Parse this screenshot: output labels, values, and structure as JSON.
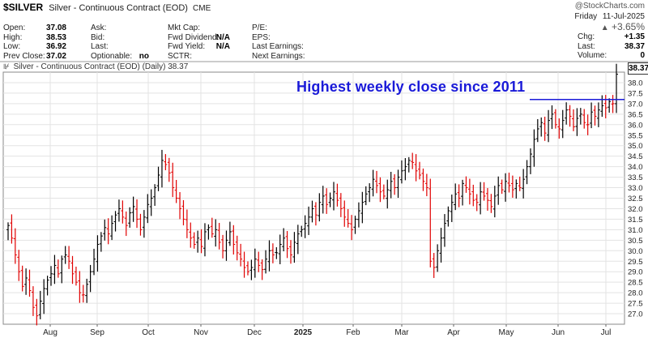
{
  "header": {
    "symbol": "$SILVER",
    "description": "Silver - Continuous Contract (EOD)",
    "exchange": "CME",
    "logo": "@StockCharts.com",
    "day": "Friday",
    "date": "11-Jul-2025",
    "change_pct": "+3.65%",
    "arrow_icon": "up-triangle-icon",
    "col1": [
      {
        "label": "Open:",
        "value": "37.08"
      },
      {
        "label": "High:",
        "value": "38.53"
      },
      {
        "label": "Low:",
        "value": "36.92"
      },
      {
        "label": "Prev Close:",
        "value": "37.02"
      }
    ],
    "col2": [
      {
        "label": "Ask:",
        "value": ""
      },
      {
        "label": "Bid:",
        "value": ""
      },
      {
        "label": "Last:",
        "value": ""
      },
      {
        "label": "Optionable:",
        "value": "no"
      }
    ],
    "col3": [
      {
        "label": "Mkt Cap:",
        "value": ""
      },
      {
        "label": "Fwd Dividend:",
        "value": "N/A"
      },
      {
        "label": "Fwd Yield:",
        "value": "N/A"
      },
      {
        "label": "SCTR:",
        "value": ""
      }
    ],
    "col4": [
      {
        "label": "P/E:",
        "value": ""
      },
      {
        "label": "EPS:",
        "value": ""
      },
      {
        "label": "Last Earnings:",
        "value": ""
      },
      {
        "label": "Next Earnings:",
        "value": ""
      }
    ],
    "col5": [
      {
        "label": "Chg:",
        "value": "+1.35"
      },
      {
        "label": "Last:",
        "value": "38.37"
      },
      {
        "label": "Volume:",
        "value": "0"
      }
    ]
  },
  "plot": {
    "subtitle": "Silver - Continuous Contract (EOD) (Daily) 38.37",
    "annotation": "Highest weekly close since 2011",
    "last_price_label": "38.37"
  },
  "colors": {
    "up": "#000000",
    "down": "#e00000",
    "annotation": "#1a1ad8",
    "grid": "#e3e3e3"
  },
  "chart_data": {
    "type": "ohlc",
    "xlabel": "",
    "ylabel": "",
    "ylim": [
      26.5,
      38.5
    ],
    "y_ticks": [
      27.0,
      27.5,
      28.0,
      28.5,
      29.0,
      29.5,
      30.0,
      30.5,
      31.0,
      31.5,
      32.0,
      32.5,
      33.0,
      33.5,
      34.0,
      34.5,
      35.0,
      35.5,
      36.0,
      36.5,
      37.0,
      37.5,
      38.0
    ],
    "x_tick_labels": [
      "Aug",
      "Sep",
      "Oct",
      "Nov",
      "Dec",
      "2025",
      "Feb",
      "Mar",
      "Apr",
      "May",
      "Jun",
      "Jul"
    ],
    "grid": true,
    "approx_closes": [
      31.2,
      30.6,
      29.8,
      29.0,
      28.3,
      28.7,
      28.1,
      27.3,
      26.9,
      27.6,
      28.2,
      28.6,
      28.9,
      29.3,
      28.9,
      29.6,
      29.8,
      29.5,
      28.9,
      28.5,
      28.0,
      27.9,
      28.4,
      29.0,
      29.6,
      30.3,
      30.7,
      31.1,
      30.8,
      31.3,
      31.7,
      32.0,
      31.6,
      31.2,
      31.8,
      32.1,
      31.5,
      31.0,
      31.6,
      32.2,
      32.5,
      33.0,
      33.6,
      34.3,
      34.1,
      33.7,
      33.0,
      32.5,
      32.0,
      31.5,
      31.0,
      30.6,
      30.3,
      30.6,
      30.2,
      30.9,
      31.1,
      30.8,
      31.0,
      30.4,
      30.0,
      30.5,
      30.9,
      30.3,
      29.9,
      29.6,
      29.2,
      29.0,
      29.2,
      29.6,
      29.3,
      29.1,
      29.6,
      30.0,
      29.8,
      29.9,
      30.3,
      30.6,
      30.1,
      29.8,
      30.4,
      30.8,
      31.0,
      31.3,
      31.6,
      32.0,
      31.7,
      32.3,
      32.6,
      32.2,
      32.5,
      32.8,
      32.4,
      32.0,
      31.6,
      31.3,
      31.0,
      31.5,
      31.9,
      32.3,
      32.7,
      33.0,
      33.4,
      33.1,
      32.8,
      32.6,
      32.9,
      33.3,
      33.0,
      33.5,
      33.8,
      34.0,
      34.3,
      34.2,
      33.8,
      33.6,
      33.3,
      33.0,
      29.5,
      29.2,
      30.0,
      30.6,
      31.3,
      31.9,
      32.3,
      32.7,
      32.5,
      33.2,
      33.0,
      32.7,
      32.4,
      32.3,
      32.8,
      32.6,
      32.4,
      32.1,
      32.6,
      33.1,
      32.9,
      33.3,
      33.1,
      32.9,
      33.2,
      33.0,
      33.4,
      34.0,
      34.6,
      35.3,
      35.8,
      36.1,
      35.6,
      36.2,
      36.5,
      36.0,
      35.8,
      36.2,
      36.7,
      36.4,
      35.9,
      36.3,
      36.5,
      36.1,
      36.0,
      36.6,
      36.4,
      36.7,
      36.9,
      36.8,
      37.1,
      37.0,
      38.4
    ]
  }
}
